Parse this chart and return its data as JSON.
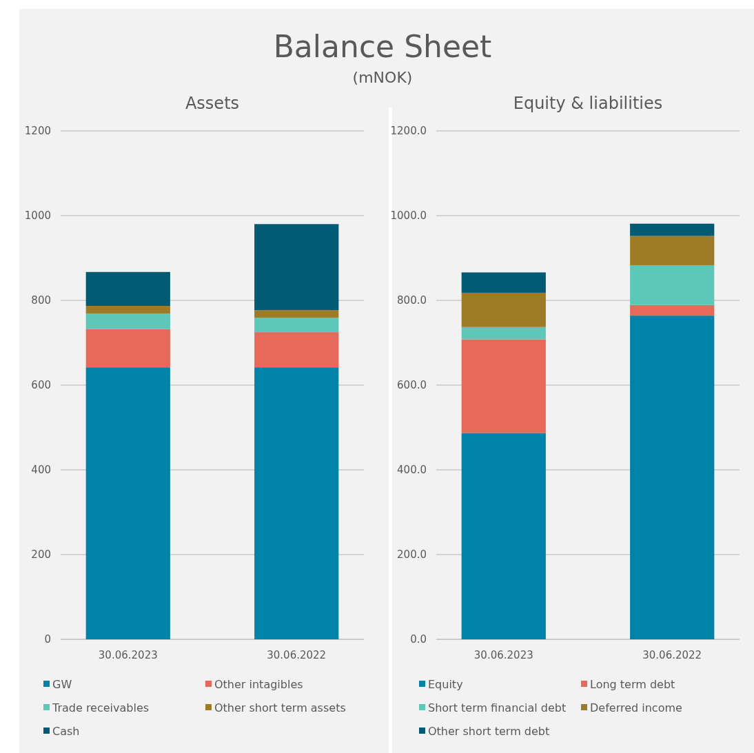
{
  "chart_data": [
    {
      "type": "bar",
      "title": "Assets",
      "annotations": [
        "Balance Sheet",
        "(mNOK)"
      ],
      "categories": [
        "30.06.2023",
        "30.06.2022"
      ],
      "stacked": true,
      "ylim": [
        0,
        1200
      ],
      "yticks": [
        0,
        200,
        400,
        600,
        800,
        1000,
        1200
      ],
      "grid": "y",
      "legend": "bottom",
      "series": [
        {
          "name": "GW",
          "color": "#0083a9",
          "values": [
            642,
            642
          ]
        },
        {
          "name": "Other intagibles",
          "color": "#e8695a",
          "values": [
            90,
            83
          ]
        },
        {
          "name": "Trade receivables",
          "color": "#5ec8b8",
          "values": [
            37,
            34
          ]
        },
        {
          "name": "Other short term assets",
          "color": "#9e7b26",
          "values": [
            18,
            18
          ]
        },
        {
          "name": "Cash",
          "color": "#005a74",
          "values": [
            80,
            203
          ]
        }
      ]
    },
    {
      "type": "bar",
      "title": "Equity & liabilities",
      "categories": [
        "30.06.2023",
        "30.06.2022"
      ],
      "stacked": true,
      "ylim": [
        0,
        1200
      ],
      "yticks": [
        {
          "value": 0,
          "label": "0.0"
        },
        {
          "value": 200,
          "label": "200.0"
        },
        {
          "value": 400,
          "label": "400.0"
        },
        {
          "value": 600,
          "label": "600.0"
        },
        {
          "value": 800,
          "label": "800.0"
        },
        {
          "value": 1000,
          "label": "1000.0"
        },
        {
          "value": 1200,
          "label": "1200.0"
        }
      ],
      "grid": "y",
      "legend": "bottom",
      "series": [
        {
          "name": "Equity",
          "color": "#0083a9",
          "values": [
            487,
            764
          ]
        },
        {
          "name": "Long term debt",
          "color": "#e8695a",
          "values": [
            221,
            25
          ]
        },
        {
          "name": "Short term financial debt",
          "color": "#5ec8b8",
          "values": [
            29,
            94
          ]
        },
        {
          "name": "Deferred income",
          "color": "#9e7b26",
          "values": [
            81,
            69
          ]
        },
        {
          "name": "Other short term debt",
          "color": "#005a74",
          "values": [
            48,
            29
          ]
        }
      ]
    }
  ]
}
